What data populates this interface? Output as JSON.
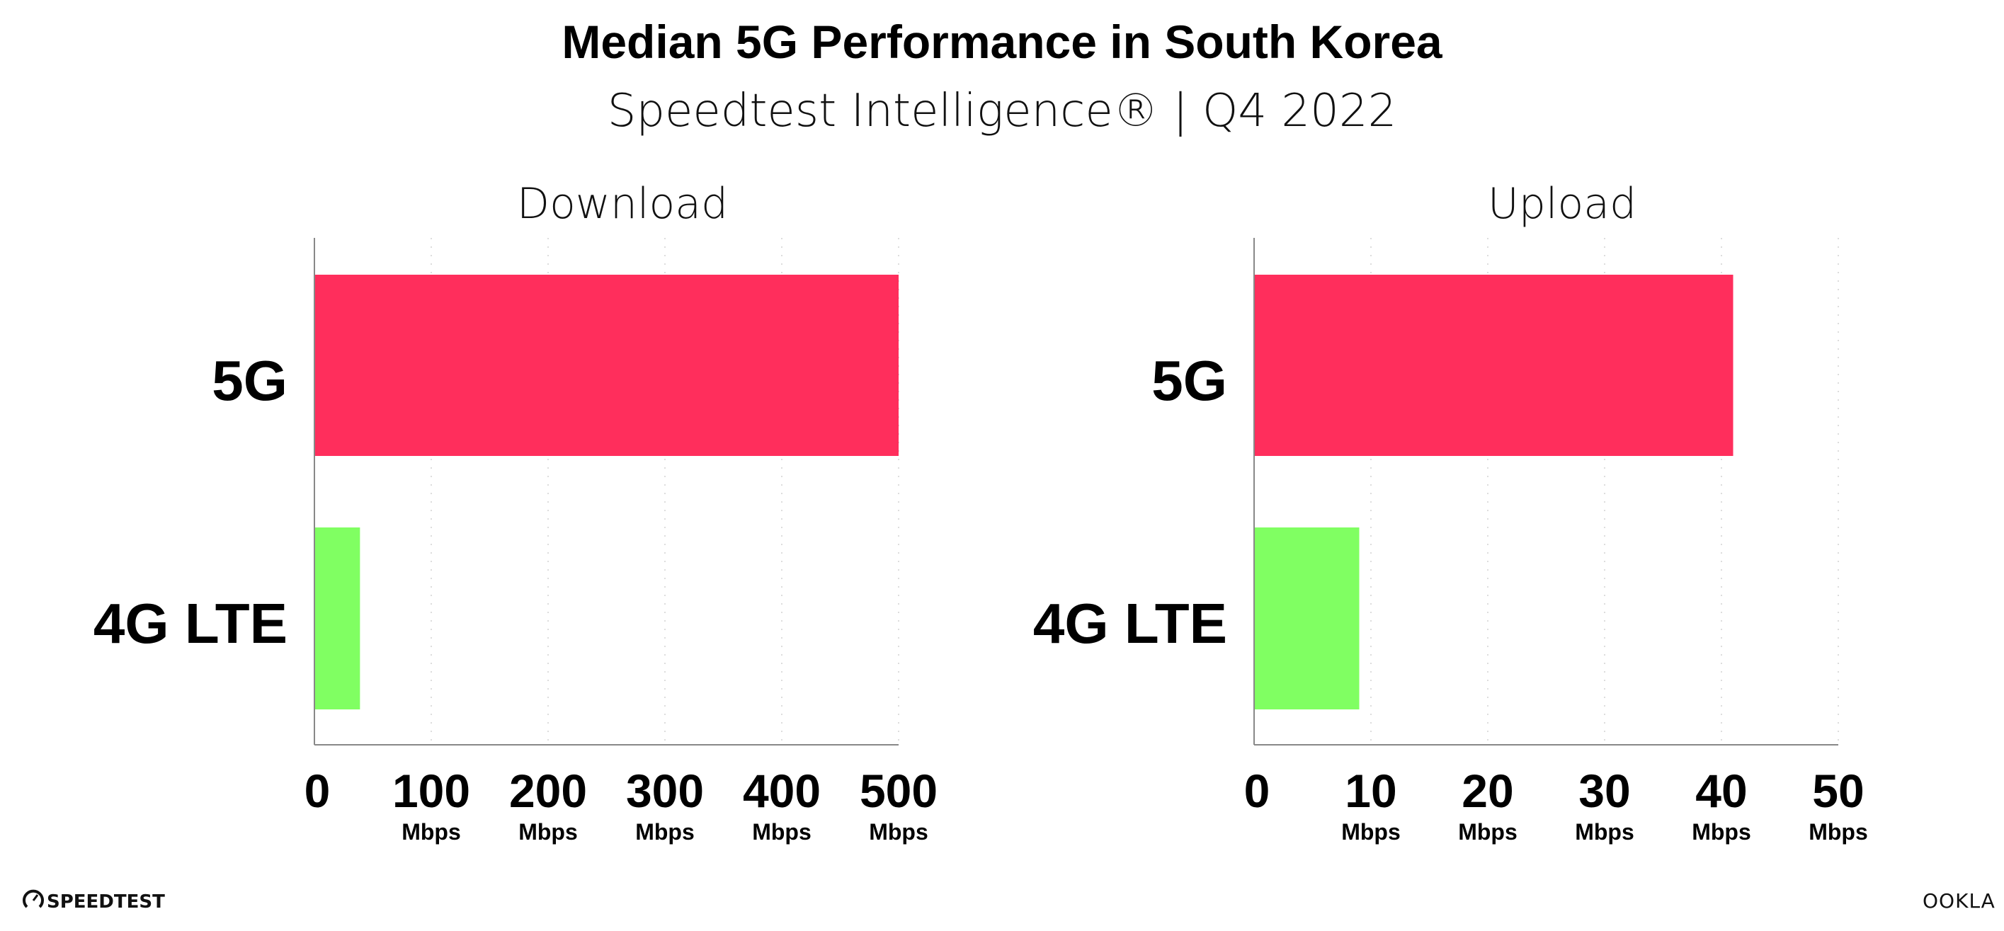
{
  "header": {
    "title": "Median 5G Performance in South Korea",
    "subtitle": "Speedtest Intelligence® | Q4 2022"
  },
  "colors": {
    "5G": "#ff2e5c",
    "4G LTE": "#80ff62",
    "axis": "#888888",
    "grid": "#dddddd"
  },
  "chart_data": [
    {
      "type": "bar",
      "orientation": "horizontal",
      "title": "Download",
      "categories": [
        "5G",
        "4G LTE"
      ],
      "values": [
        500,
        39
      ],
      "xlim": [
        0,
        500
      ],
      "ticks": [
        0,
        100,
        200,
        300,
        400,
        500
      ],
      "tick_labels": [
        "0",
        "100",
        "200",
        "300",
        "400",
        "500"
      ],
      "unit": "Mbps",
      "grid": "vertical dotted"
    },
    {
      "type": "bar",
      "orientation": "horizontal",
      "title": "Upload",
      "categories": [
        "5G",
        "4G LTE"
      ],
      "values": [
        41,
        9
      ],
      "xlim": [
        0,
        50
      ],
      "ticks": [
        0,
        10,
        20,
        30,
        40,
        50
      ],
      "tick_labels": [
        "0",
        "10",
        "20",
        "30",
        "40",
        "50"
      ],
      "unit": "Mbps",
      "grid": "vertical dotted"
    }
  ],
  "footer": {
    "left_logo": "SPEEDTEST",
    "right_logo": "OOKLA"
  }
}
